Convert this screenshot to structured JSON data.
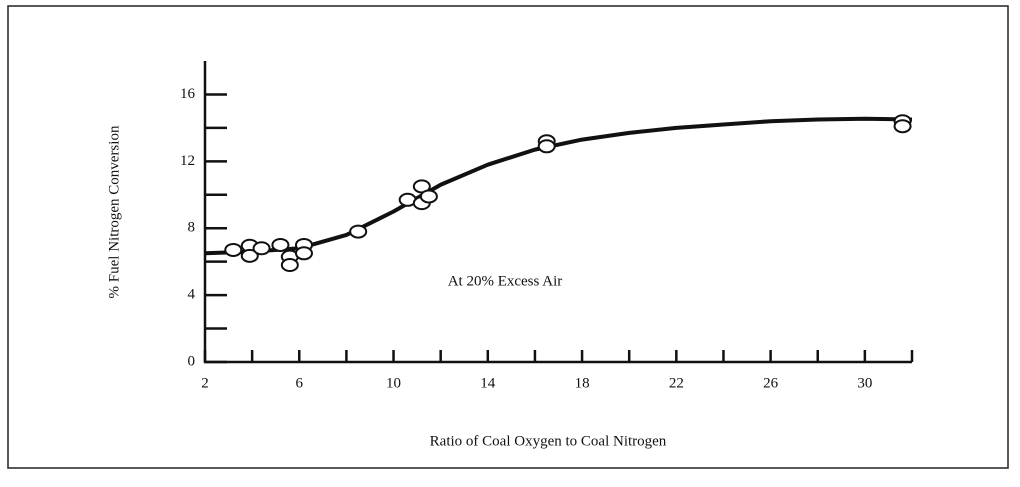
{
  "chart_data": {
    "type": "scatter",
    "y_label": "% Fuel Nitrogen Conversion",
    "x_label": "Ratio of Coal Oxygen to Coal Nitrogen",
    "annotation": "At 20% Excess Air",
    "xlim": [
      2,
      32
    ],
    "ylim": [
      0,
      18
    ],
    "xticks": [
      2,
      6,
      10,
      14,
      18,
      22,
      26,
      30
    ],
    "yticks": [
      0,
      4,
      8,
      12,
      16
    ],
    "color": "#111111",
    "points": {
      "x": [
        3.2,
        3.9,
        3.9,
        4.4,
        5.2,
        5.6,
        5.6,
        6.2,
        6.2,
        8.5,
        10.6,
        11.2,
        11.2,
        11.5,
        16.5,
        16.5,
        31.6,
        31.6
      ],
      "y": [
        6.7,
        6.95,
        6.35,
        6.8,
        7.0,
        6.3,
        5.8,
        7.0,
        6.5,
        7.8,
        9.7,
        10.5,
        9.5,
        9.9,
        13.2,
        12.9,
        14.4,
        14.1
      ]
    },
    "curve": {
      "x": [
        2,
        4,
        6,
        8,
        10,
        12,
        14,
        16,
        18,
        20,
        22,
        24,
        26,
        28,
        30,
        32
      ],
      "y": [
        6.5,
        6.6,
        6.8,
        7.6,
        9.0,
        10.6,
        11.8,
        12.7,
        13.3,
        13.7,
        14.0,
        14.2,
        14.4,
        14.5,
        14.55,
        14.5
      ]
    }
  }
}
